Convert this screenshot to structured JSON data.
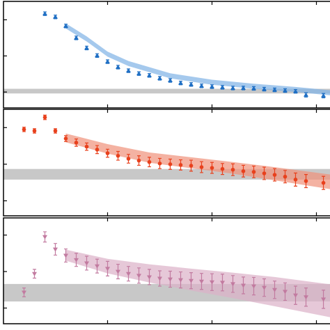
{
  "chart_data": [
    {
      "type": "errorbar",
      "marker": "triangle-up",
      "color": "#1f6fc4",
      "x": [
        2,
        3,
        4,
        5,
        6,
        7,
        8,
        9,
        10,
        11,
        12,
        13,
        14,
        15,
        16,
        17,
        18,
        19,
        20,
        21,
        22,
        23,
        24,
        25,
        26,
        27,
        28.67
      ],
      "values": [
        2.17,
        2.08,
        1.83,
        1.5,
        1.22,
        1.01,
        0.84,
        0.69,
        0.59,
        0.51,
        0.46,
        0.38,
        0.32,
        0.25,
        0.21,
        0.17,
        0.15,
        0.13,
        0.11,
        0.11,
        0.1,
        0.08,
        0.06,
        0.04,
        0.02,
        -0.08,
        -0.1
      ],
      "errors": [
        0.05,
        0.05,
        0.05,
        0.05,
        0.05,
        0.05,
        0.05,
        0.05,
        0.05,
        0.05,
        0.05,
        0.05,
        0.05,
        0.05,
        0.05,
        0.05,
        0.05,
        0.05,
        0.05,
        0.05,
        0.05,
        0.05,
        0.05,
        0.05,
        0.05,
        0.06,
        0.06
      ],
      "fit": {
        "color": "#7fb2e5",
        "x": [
          4,
          6,
          8,
          10,
          14,
          18,
          22,
          26,
          29.3
        ],
        "upper": [
          1.9,
          1.54,
          1.12,
          0.86,
          0.52,
          0.34,
          0.23,
          0.14,
          0.05
        ],
        "lower": [
          1.76,
          1.4,
          0.98,
          0.72,
          0.38,
          0.2,
          0.09,
          0.0,
          -0.09
        ]
      },
      "reference_band": [
        -0.04,
        0.09
      ],
      "band_color": "#c8c8c8",
      "xlim": [
        -2.3,
        29.3
      ],
      "xticks": [
        8,
        18,
        28
      ],
      "ylim": [
        -0.44,
        2.51
      ],
      "yticks": [
        0,
        1,
        2
      ]
    },
    {
      "type": "errorbar",
      "marker": "circle",
      "color": "#e8401c",
      "x": [
        0,
        1,
        2,
        3,
        4,
        5,
        6,
        7,
        8,
        9,
        10,
        11,
        12,
        13,
        14,
        15,
        16,
        17,
        18,
        19,
        20,
        21,
        22,
        23,
        24,
        25,
        26,
        27,
        28.67
      ],
      "values": [
        0.95,
        0.91,
        1.28,
        0.91,
        0.7,
        0.59,
        0.48,
        0.4,
        0.3,
        0.23,
        0.15,
        0.1,
        0.06,
        0.02,
        0,
        -0.02,
        -0.04,
        -0.08,
        -0.1,
        -0.13,
        -0.15,
        -0.19,
        -0.21,
        -0.25,
        -0.29,
        -0.34,
        -0.42,
        -0.46,
        -0.51
      ],
      "errors": [
        0.06,
        0.06,
        0.06,
        0.06,
        0.08,
        0.1,
        0.1,
        0.11,
        0.11,
        0.12,
        0.12,
        0.13,
        0.13,
        0.14,
        0.14,
        0.14,
        0.15,
        0.15,
        0.15,
        0.15,
        0.16,
        0.16,
        0.16,
        0.17,
        0.17,
        0.17,
        0.18,
        0.18,
        0.18
      ],
      "fit": {
        "color": "#f0917a",
        "x": [
          4,
          8,
          12,
          16,
          20,
          24,
          29.3
        ],
        "upper": [
          0.84,
          0.55,
          0.32,
          0.19,
          0.06,
          -0.08,
          -0.28
        ],
        "lower": [
          0.6,
          0.29,
          0.04,
          -0.11,
          -0.26,
          -0.44,
          -0.68
        ]
      },
      "reference_band": [
        -0.42,
        -0.13
      ],
      "band_color": "#c8c8c8",
      "xlim": [
        -2.3,
        29.3
      ],
      "xticks": [
        8,
        18,
        28
      ],
      "ylim": [
        -1.41,
        1.5
      ],
      "yticks": [
        -1,
        0,
        1
      ]
    },
    {
      "type": "errorbar",
      "marker": "triangle-down",
      "color": "#c27ba0",
      "x": [
        0,
        1,
        2,
        3,
        4,
        5,
        6,
        7,
        8,
        9,
        10,
        11,
        12,
        13,
        14,
        15,
        16,
        17,
        18,
        19,
        20,
        21,
        22,
        23,
        24,
        25,
        26,
        27,
        28.67
      ],
      "values": [
        -0.57,
        -0.06,
        0.95,
        0.61,
        0.44,
        0.32,
        0.23,
        0.15,
        0.08,
        0,
        -0.06,
        -0.11,
        -0.15,
        -0.19,
        -0.21,
        -0.23,
        -0.25,
        -0.27,
        -0.29,
        -0.3,
        -0.34,
        -0.38,
        -0.4,
        -0.44,
        -0.5,
        -0.55,
        -0.65,
        -0.7,
        -0.76
      ],
      "errors": [
        0.12,
        0.12,
        0.14,
        0.16,
        0.18,
        0.18,
        0.19,
        0.19,
        0.2,
        0.2,
        0.2,
        0.21,
        0.21,
        0.21,
        0.22,
        0.22,
        0.22,
        0.22,
        0.23,
        0.23,
        0.23,
        0.23,
        0.24,
        0.24,
        0.24,
        0.24,
        0.25,
        0.25,
        0.25
      ],
      "fit": {
        "color": "#dcb0c8",
        "x": [
          4,
          8,
          12,
          16,
          20,
          24,
          29.3
        ],
        "upper": [
          0.6,
          0.35,
          0.2,
          0.08,
          -0.03,
          -0.15,
          -0.35
        ],
        "lower": [
          0.3,
          -0.05,
          -0.3,
          -0.52,
          -0.73,
          -0.95,
          -1.25
        ]
      },
      "reference_band": [
        -0.82,
        -0.34
      ],
      "band_color": "#c8c8c8",
      "xlim": [
        -2.3,
        29.3
      ],
      "xticks": [
        8,
        18,
        28
      ],
      "ylim": [
        -1.43,
        1.47
      ],
      "yticks": [
        -1,
        0,
        1
      ]
    }
  ]
}
